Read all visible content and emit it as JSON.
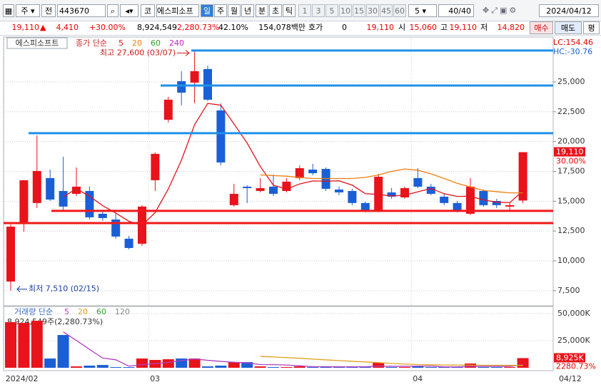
{
  "toolbar": {
    "items": [
      "주",
      "전",
      "443670",
      "코",
      "에스피소프",
      "일",
      "주",
      "월",
      "년",
      "분",
      "초",
      "틱",
      "1",
      "3",
      "5",
      "10",
      "15",
      "30",
      "45",
      "60",
      "5",
      "40/40",
      "2024/04/12"
    ]
  },
  "info": {
    "items": [
      "19,110",
      "4,410",
      "+30.00%",
      "8,924,549",
      "2,280.73%",
      "42.10%",
      "154,078백만",
      "호가",
      "0",
      "19,110",
      "시",
      "15,060",
      "고",
      "19,110",
      "저",
      "14,820",
      "매수",
      "매도",
      "평"
    ]
  },
  "chart_data": {
    "type": "candlestick",
    "name": "에스피소프트",
    "ma_label": "종가 단순",
    "categories": [
      "2024/02",
      null,
      null,
      null,
      null,
      null,
      null,
      null,
      null,
      null,
      null,
      "03",
      null,
      null,
      null,
      null,
      null,
      null,
      null,
      null,
      null,
      null,
      null,
      null,
      null,
      null,
      null,
      null,
      null,
      null,
      null,
      "04",
      null,
      null,
      null,
      null,
      null,
      null,
      null,
      null
    ],
    "last_date": "04/12",
    "open": [
      8270,
      13170,
      14850,
      16940,
      15860,
      15620,
      15860,
      13950,
      13470,
      11860,
      11440,
      16760,
      21830,
      25060,
      24940,
      26080,
      22610,
      14670,
      16220,
      15860,
      16220,
      15860,
      16940,
      17650,
      17710,
      15980,
      15860,
      14850,
      14250,
      15740,
      15320,
      16940,
      16220,
      15380,
      14850,
      13950,
      15860,
      15020,
      14550,
      15060
    ],
    "high": [
      13050,
      16760,
      20520,
      17650,
      18730,
      17830,
      16220,
      14250,
      13950,
      12100,
      14670,
      19090,
      23750,
      25900,
      27600,
      26370,
      23210,
      16460,
      16340,
      16940,
      17230,
      16940,
      18010,
      18130,
      17830,
      16220,
      16040,
      14970,
      17290,
      16100,
      16220,
      17770,
      16460,
      15620,
      15020,
      16940,
      15980,
      15200,
      14910,
      19110
    ],
    "low": [
      7510,
      12450,
      14430,
      15020,
      14250,
      15440,
      13470,
      13350,
      11860,
      10960,
      11260,
      15860,
      21600,
      23030,
      23210,
      23390,
      18010,
      14550,
      14850,
      15740,
      15440,
      15740,
      16760,
      17170,
      15860,
      15500,
      14670,
      14070,
      14070,
      15200,
      15200,
      16100,
      15500,
      14670,
      14070,
      13830,
      14550,
      14430,
      14250,
      14820
    ],
    "close": [
      12870,
      16760,
      17530,
      15140,
      14550,
      16220,
      13650,
      13590,
      12040,
      11080,
      14550,
      18970,
      23510,
      24100,
      25900,
      23510,
      18250,
      15620,
      16100,
      16100,
      15620,
      16640,
      17770,
      17350,
      16040,
      15740,
      14850,
      14190,
      17050,
      15380,
      16100,
      16220,
      15620,
      14850,
      14190,
      16220,
      14670,
      14670,
      14670,
      19110
    ],
    "up_color": "#e8131b",
    "down_color": "#1a5fd6",
    "ma": [
      {
        "name": "5",
        "color": "#e0141c",
        "values": [
          null,
          null,
          null,
          null,
          15370,
          16040,
          15420,
          14630,
          14010,
          13320,
          12980,
          14050,
          16030,
          18440,
          21410,
          23200,
          23050,
          21480,
          19880,
          17920,
          16340,
          16020,
          16450,
          16700,
          16680,
          16710,
          16350,
          15630,
          15570,
          15440,
          15510,
          15790,
          16070,
          15630,
          15400,
          15420,
          15110,
          14920,
          14880,
          15870
        ]
      },
      {
        "name": "20",
        "color": "#f07c10",
        "values": [
          null,
          null,
          null,
          null,
          null,
          null,
          null,
          null,
          null,
          null,
          null,
          null,
          null,
          null,
          null,
          null,
          null,
          null,
          null,
          17200,
          17150,
          17100,
          17000,
          16900,
          16900,
          16900,
          16900,
          17000,
          17200,
          17500,
          17700,
          17600,
          17300,
          16900,
          16500,
          16200,
          15900,
          15800,
          15700,
          15700
        ]
      },
      {
        "name": "60",
        "color": "#2ea02e",
        "values": [
          null,
          null,
          null,
          null,
          null,
          null,
          null,
          null,
          null,
          null,
          null,
          null,
          null,
          null,
          null,
          null,
          null,
          null,
          null,
          null,
          null,
          null,
          null,
          null,
          null,
          null,
          null,
          null,
          null,
          null,
          null,
          null,
          null,
          null,
          null,
          null,
          null,
          null,
          null,
          null
        ]
      },
      {
        "name": "240",
        "color": "#d020d0",
        "values": [
          null,
          null,
          null,
          null,
          null,
          null,
          null,
          null,
          null,
          null,
          null,
          null,
          null,
          null,
          null,
          null,
          null,
          null,
          null,
          null,
          null,
          null,
          null,
          null,
          null,
          null,
          null,
          null,
          null,
          null,
          null,
          null,
          null,
          null,
          null,
          null,
          null,
          null,
          null,
          null
        ]
      }
    ],
    "ylim": [
      6300,
      28400
    ],
    "yticks": [
      {
        "value": 7500,
        "label": "7,500"
      },
      {
        "value": 10000,
        "label": "10,000"
      },
      {
        "value": 12500,
        "label": "12,500"
      },
      {
        "value": 15000,
        "label": "15,000"
      },
      {
        "value": 17500,
        "label": "17,500"
      },
      {
        "value": 20000,
        "label": "20,000"
      },
      {
        "value": 22500,
        "label": "22,500"
      },
      {
        "value": 25000,
        "label": "25,000"
      }
    ],
    "grid": true,
    "hlines": [
      {
        "value": 27630,
        "color": "#1e90e8"
      },
      {
        "value": 24700,
        "color": "#1e90e8"
      },
      {
        "value": 20700,
        "color": "#1e90e8"
      },
      {
        "value": 14190,
        "color": "#f01818"
      },
      {
        "value": 13170,
        "color": "#f01818"
      }
    ],
    "high_label": "최고 27,600 (03/07)",
    "low_label": "최저 7,510 (02/15)",
    "last_price": "19,110",
    "last_change": "30.00%",
    "lc": "LC:154.46",
    "hc": "HC:-30.76",
    "volume": {
      "label": "거래량 단순",
      "summary": "8,924,549주(2,280.73%)",
      "values": [
        42100,
        41400,
        43400,
        8550,
        30260,
        1300,
        2000,
        2600,
        660,
        660,
        8550,
        7240,
        7900,
        8550,
        8550,
        1300,
        2000,
        5260,
        5260,
        1300,
        660,
        660,
        1300,
        660,
        1300,
        660,
        660,
        660,
        4600,
        660,
        660,
        1300,
        660,
        660,
        660,
        3950,
        660,
        660,
        660,
        8925
      ],
      "ylim": [
        -2600,
        53300
      ],
      "yticks": [
        {
          "value": 25000,
          "label": "25,000K"
        },
        {
          "value": 50000,
          "label": "50,000K"
        }
      ],
      "last_label": "8,925K",
      "last_pct": "2280.73%",
      "ma": [
        {
          "name": "5",
          "color": "#b040c0",
          "values": [
            null,
            null,
            null,
            null,
            33100,
            25200,
            17000,
            9000,
            7400,
            1500,
            3000,
            3900,
            4900,
            6600,
            8200,
            6900,
            5900,
            5100,
            4500,
            3000,
            2900,
            2600,
            1800,
            1000,
            1000,
            900,
            900,
            900,
            1600,
            1400,
            1400,
            1600,
            1600,
            800,
            800,
            1300,
            1300,
            1300,
            1300,
            2800
          ]
        },
        {
          "name": "20",
          "color": "#e0a020",
          "values": [
            null,
            null,
            null,
            null,
            null,
            null,
            null,
            null,
            null,
            null,
            null,
            null,
            null,
            null,
            null,
            null,
            null,
            null,
            null,
            10500,
            10000,
            9400,
            8800,
            8000,
            7300,
            6700,
            6000,
            5400,
            4800,
            4000,
            3500,
            3000,
            2800,
            2600,
            2500,
            2400,
            2300,
            2300,
            2200,
            2200
          ]
        },
        {
          "name": "60",
          "color": "#2ea02e",
          "values": [
            null,
            null,
            null,
            null,
            null,
            null,
            null,
            null,
            null,
            null,
            null,
            null,
            null,
            null,
            null,
            null,
            null,
            null,
            null,
            null,
            null,
            null,
            null,
            null,
            null,
            null,
            null,
            null,
            null,
            null,
            null,
            null,
            null,
            null,
            null,
            null,
            null,
            null,
            null,
            null
          ]
        },
        {
          "name": "120",
          "color": "#888888",
          "values": [
            null,
            null,
            null,
            null,
            null,
            null,
            null,
            null,
            null,
            null,
            null,
            null,
            null,
            null,
            null,
            null,
            null,
            null,
            null,
            null,
            null,
            null,
            null,
            null,
            null,
            null,
            null,
            null,
            null,
            null,
            null,
            null,
            null,
            null,
            null,
            null,
            null,
            null,
            null,
            null
          ]
        }
      ]
    }
  }
}
